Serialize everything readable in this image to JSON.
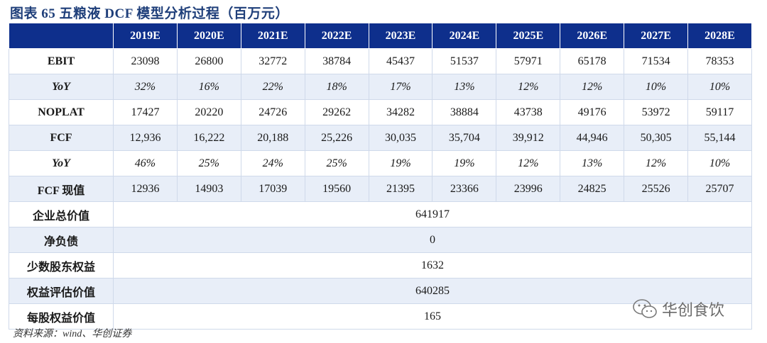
{
  "title": "图表 65   五粮液 DCF 模型分析过程（百万元）",
  "columns": [
    "2019E",
    "2020E",
    "2021E",
    "2022E",
    "2023E",
    "2024E",
    "2025E",
    "2026E",
    "2027E",
    "2028E"
  ],
  "rows": [
    {
      "label": "EBIT",
      "italic": false,
      "values": [
        "23098",
        "26800",
        "32772",
        "38784",
        "45437",
        "51537",
        "57971",
        "65178",
        "71534",
        "78353"
      ]
    },
    {
      "label": "YoY",
      "italic": true,
      "values": [
        "32%",
        "16%",
        "22%",
        "18%",
        "17%",
        "13%",
        "12%",
        "12%",
        "10%",
        "10%"
      ]
    },
    {
      "label": "NOPLAT",
      "italic": false,
      "values": [
        "17427",
        "20220",
        "24726",
        "29262",
        "34282",
        "38884",
        "43738",
        "49176",
        "53972",
        "59117"
      ]
    },
    {
      "label": "FCF",
      "italic": false,
      "values": [
        "12,936",
        "16,222",
        "20,188",
        "25,226",
        "30,035",
        "35,704",
        "39,912",
        "44,946",
        "50,305",
        "55,144"
      ]
    },
    {
      "label": "YoY",
      "italic": true,
      "values": [
        "46%",
        "25%",
        "24%",
        "25%",
        "19%",
        "19%",
        "12%",
        "13%",
        "12%",
        "10%"
      ]
    },
    {
      "label": "FCF 现值",
      "italic": false,
      "values": [
        "12936",
        "14903",
        "17039",
        "19560",
        "21395",
        "23366",
        "23996",
        "24825",
        "25526",
        "25707"
      ]
    }
  ],
  "summary": [
    {
      "label": "企业总价值",
      "value": "641917"
    },
    {
      "label": "净负债",
      "value": "0"
    },
    {
      "label": "少数股东权益",
      "value": "1632"
    },
    {
      "label": "权益评估价值",
      "value": "640285"
    },
    {
      "label": "每股权益价值",
      "value": "165"
    }
  ],
  "source": "资料来源：wind、华创证券",
  "watermark": "华创食饮",
  "colors": {
    "header_bg": "#0e2f8c",
    "stripe_bg": "#e8eef8",
    "title": "#1f3f7a"
  }
}
